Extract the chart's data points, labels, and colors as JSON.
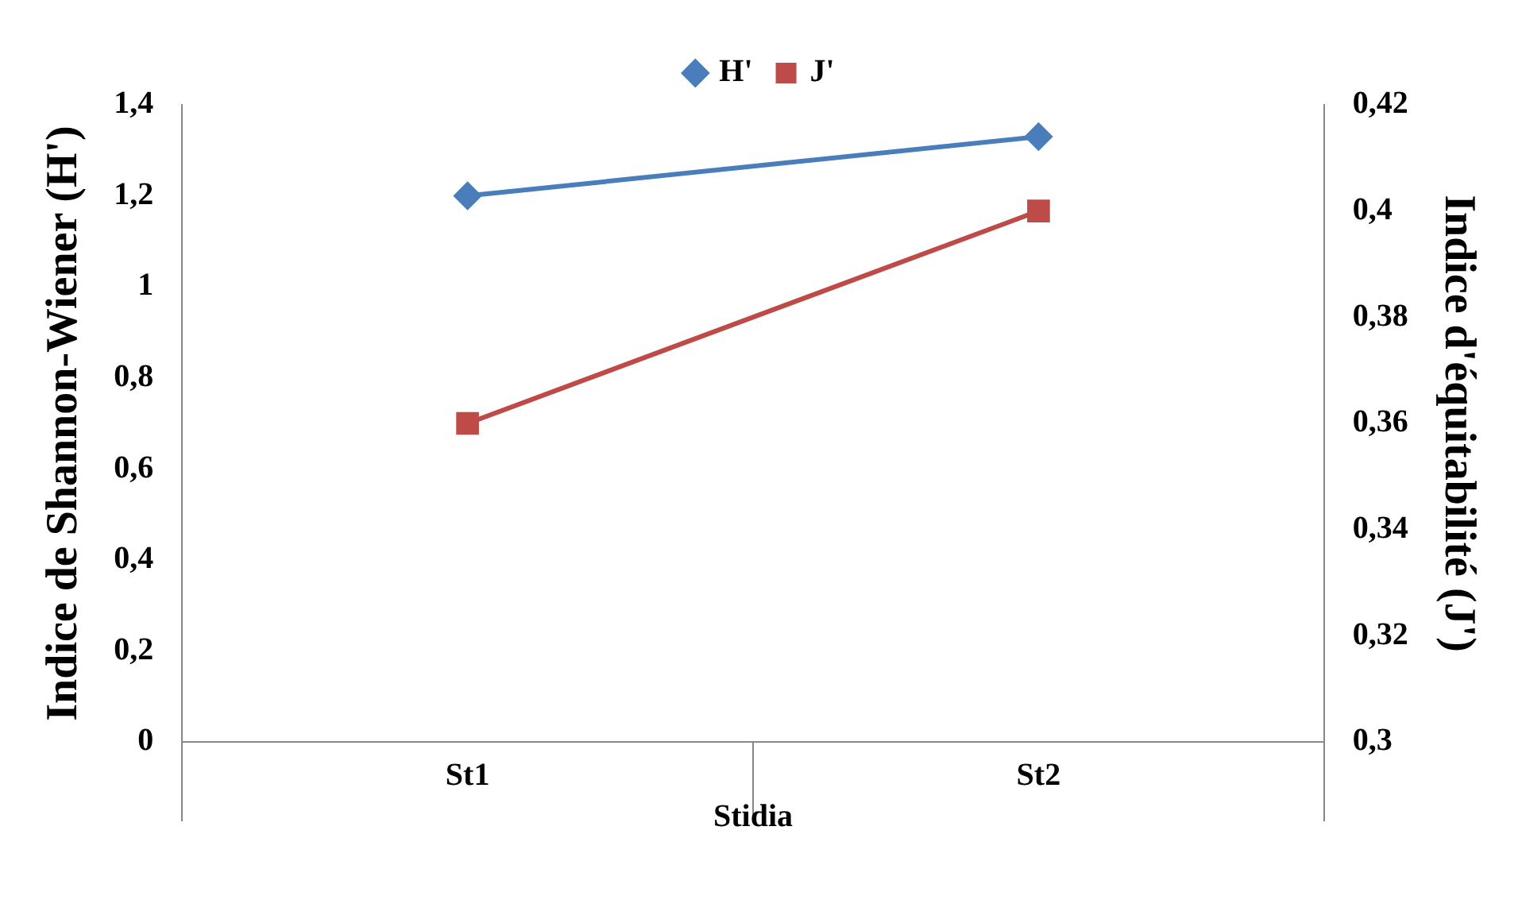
{
  "chart_data": {
    "type": "line",
    "xlabel": "Stidia",
    "ylabel": "Indice de Shannon-Wiener (H')",
    "y2label": "Indice d'équitabilité (J')",
    "categories": [
      "St1",
      "St2"
    ],
    "series": [
      {
        "name": "H'",
        "color": "#4a7ebb",
        "values": [
          1.2,
          1.33
        ],
        "marker": "diamond"
      },
      {
        "name": "J'",
        "color": "#be4b48",
        "values": [
          0.36,
          0.4
        ],
        "marker": "square",
        "axis": "y2"
      }
    ],
    "ylim": [
      0,
      1.4
    ],
    "yticks": [
      0,
      {
        "value": 0.2,
        "label": "0,2"
      },
      {
        "value": 0.4,
        "label": "0,4"
      },
      {
        "value": 0.6,
        "label": "0,6"
      },
      {
        "value": 0.8,
        "label": "0,8"
      },
      1,
      {
        "value": 1.2,
        "label": "1,2"
      },
      {
        "value": 1.4,
        "label": "1,4"
      }
    ],
    "y2lim": [
      0.3,
      0.42
    ],
    "y2ticks": [
      {
        "value": 0.3,
        "label": "0,3"
      },
      {
        "value": 0.32,
        "label": "0,32"
      },
      {
        "value": 0.34,
        "label": "0,34"
      },
      {
        "value": 0.36,
        "label": "0,36"
      },
      {
        "value": 0.38,
        "label": "0,38"
      },
      {
        "value": 0.4,
        "label": "0,4"
      },
      {
        "value": 0.42,
        "label": "0,42"
      }
    ],
    "grid": false,
    "legend": "top",
    "line_style": "solid"
  }
}
